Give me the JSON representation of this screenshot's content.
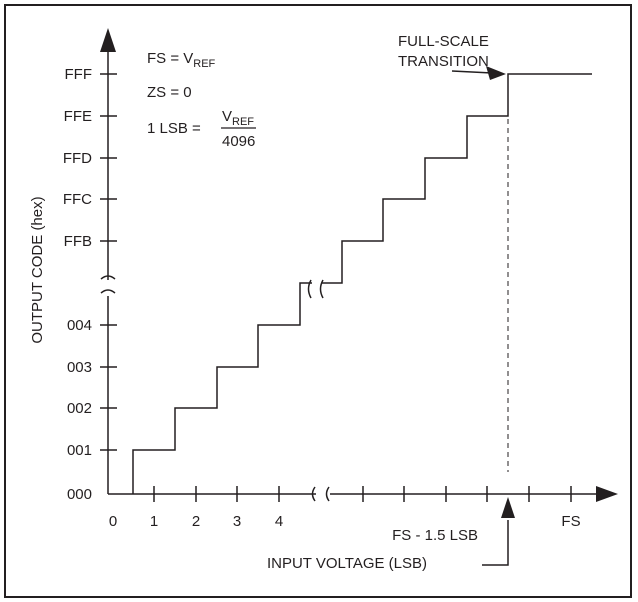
{
  "y_axis": {
    "title": "OUTPUT CODE (hex)",
    "ticks": [
      "FFF",
      "FFE",
      "FFD",
      "FFC",
      "FFB",
      "004",
      "003",
      "002",
      "001",
      "000"
    ]
  },
  "x_axis": {
    "title": "INPUT VOLTAGE (LSB)",
    "ticks": [
      "0",
      "1",
      "2",
      "3",
      "4",
      "FS"
    ]
  },
  "formulas": {
    "fs_prefix": "FS = V",
    "fs_sub": "REF",
    "zs": "ZS = 0",
    "lsb_prefix": "1 LSB = ",
    "lsb_num_main": "V",
    "lsb_num_sub": "REF",
    "lsb_den": "4096"
  },
  "annotations": {
    "full_scale_line1": "FULL-SCALE",
    "full_scale_line2": "TRANSITION",
    "fs_minus": "FS - 1.5 LSB"
  },
  "colors": {
    "ink": "#231f20",
    "background": "#ffffff"
  }
}
